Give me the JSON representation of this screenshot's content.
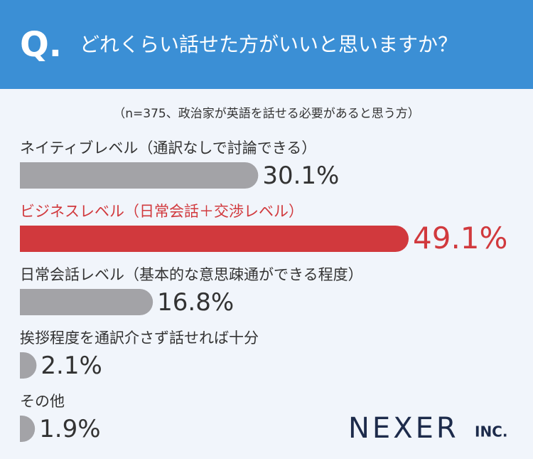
{
  "chart_data": {
    "type": "bar",
    "question_mark": "Q.",
    "title": "どれくらい話せた方がいいと思いますか？",
    "subtitle": "（n=375、政治家が英語を話せる必要があると思う方）",
    "categories": [
      "ネイティブレベル（通訳なしで討論できる）",
      "ビジネスレベル（日常会話＋交渉レベル）",
      "日常会話レベル（基本的な意思疎通ができる程度）",
      "挨拶程度を通訳介さず話せれば十分",
      "その他"
    ],
    "values": [
      30.1,
      49.1,
      16.8,
      2.1,
      1.9
    ],
    "value_labels": [
      "30.1%",
      "49.1%",
      "16.8%",
      "2.1%",
      "1.9%"
    ],
    "colors": [
      "#a3a3a7",
      "#d1393d",
      "#a3a3a7",
      "#a3a3a7",
      "#a3a3a7"
    ],
    "logo": "NEXER",
    "logo_suffix": "INC."
  }
}
